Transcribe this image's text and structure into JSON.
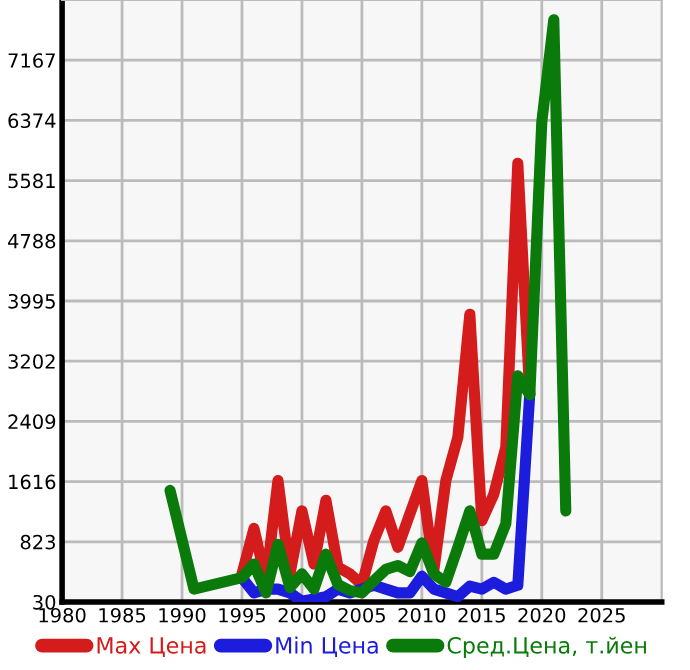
{
  "chart_data": {
    "type": "line",
    "xlim": [
      1980,
      2030
    ],
    "xticks": [
      1980,
      1985,
      1990,
      1995,
      2000,
      2005,
      2010,
      2015,
      2020,
      2025
    ],
    "ylim": [
      30,
      7960
    ],
    "yticks": [
      30,
      823,
      1616,
      2409,
      3202,
      3995,
      4788,
      5581,
      6374,
      7167
    ],
    "grid": true,
    "legend": "bottom",
    "marker": "none",
    "line_style": "solid",
    "series": [
      {
        "name": "Max Цена",
        "color": "#d41c1c",
        "x": [
          1995,
          1996,
          1997,
          1998,
          1999,
          2000,
          2001,
          2002,
          2003,
          2004,
          2005,
          2006,
          2007,
          2008,
          2009,
          2010,
          2011,
          2012,
          2013,
          2014,
          2015,
          2016,
          2017,
          2018,
          2019
        ],
        "values": [
          400,
          1000,
          300,
          1630,
          400,
          1230,
          530,
          1370,
          490,
          400,
          260,
          840,
          1230,
          750,
          1190,
          1630,
          450,
          1630,
          2200,
          3820,
          1100,
          1450,
          2070,
          5810,
          2760
        ]
      },
      {
        "name": "Min Цена",
        "color": "#1c1cdc",
        "x": [
          1995,
          1996,
          1997,
          1998,
          1999,
          2000,
          2001,
          2002,
          2003,
          2004,
          2005,
          2006,
          2007,
          2008,
          2009,
          2010,
          2011,
          2012,
          2013,
          2014,
          2015,
          2016,
          2017,
          2018,
          2019
        ],
        "values": [
          350,
          150,
          200,
          200,
          150,
          40,
          70,
          100,
          200,
          150,
          200,
          250,
          200,
          150,
          150,
          370,
          200,
          150,
          100,
          240,
          200,
          290,
          200,
          250,
          2780
        ]
      },
      {
        "name": "Сред.Цена, т.йен",
        "color": "#0a7a0a",
        "x": [
          1989,
          1991,
          1995,
          1996,
          1997,
          1998,
          1999,
          2000,
          2001,
          2002,
          2003,
          2004,
          2005,
          2006,
          2007,
          2008,
          2009,
          2010,
          2011,
          2012,
          2013,
          2014,
          2015,
          2016,
          2017,
          2018,
          2019,
          2020,
          2021,
          2022
        ],
        "values": [
          1500,
          200,
          350,
          530,
          150,
          790,
          220,
          400,
          200,
          660,
          260,
          180,
          150,
          310,
          460,
          510,
          430,
          810,
          400,
          290,
          750,
          1230,
          660,
          660,
          1060,
          3010,
          2760,
          6350,
          7700,
          1230
        ]
      }
    ]
  }
}
